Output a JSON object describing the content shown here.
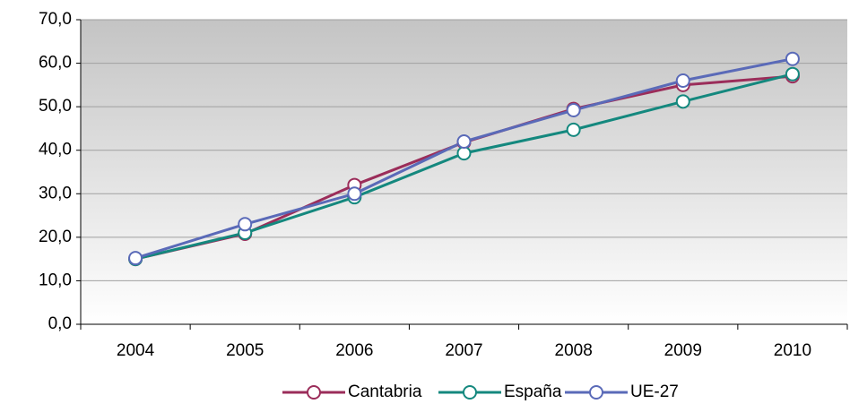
{
  "chart_data": {
    "type": "line",
    "categories": [
      "2004",
      "2005",
      "2006",
      "2007",
      "2008",
      "2009",
      "2010"
    ],
    "series": [
      {
        "name": "Cantabria",
        "color": "#9b2d5a",
        "values": [
          15.0,
          20.8,
          32.0,
          41.8,
          49.5,
          55.0,
          57.0
        ]
      },
      {
        "name": "España",
        "color": "#14887e",
        "values": [
          15.0,
          21.0,
          29.2,
          39.3,
          44.7,
          51.2,
          57.5
        ]
      },
      {
        "name": "UE-27",
        "color": "#5a6ab8",
        "values": [
          15.2,
          23.0,
          30.0,
          42.0,
          49.2,
          56.0,
          61.0
        ]
      }
    ],
    "ylim": [
      0,
      70
    ],
    "yticks": [
      {
        "value": 0,
        "label": "0,0"
      },
      {
        "value": 10,
        "label": "10,0"
      },
      {
        "value": 20,
        "label": "20,0"
      },
      {
        "value": 30,
        "label": "30,0"
      },
      {
        "value": 40,
        "label": "40,0"
      },
      {
        "value": 50,
        "label": "50,0"
      },
      {
        "value": 60,
        "label": "60,0"
      },
      {
        "value": 70,
        "label": "70,0"
      }
    ],
    "grid": true,
    "legend": "bottom"
  }
}
